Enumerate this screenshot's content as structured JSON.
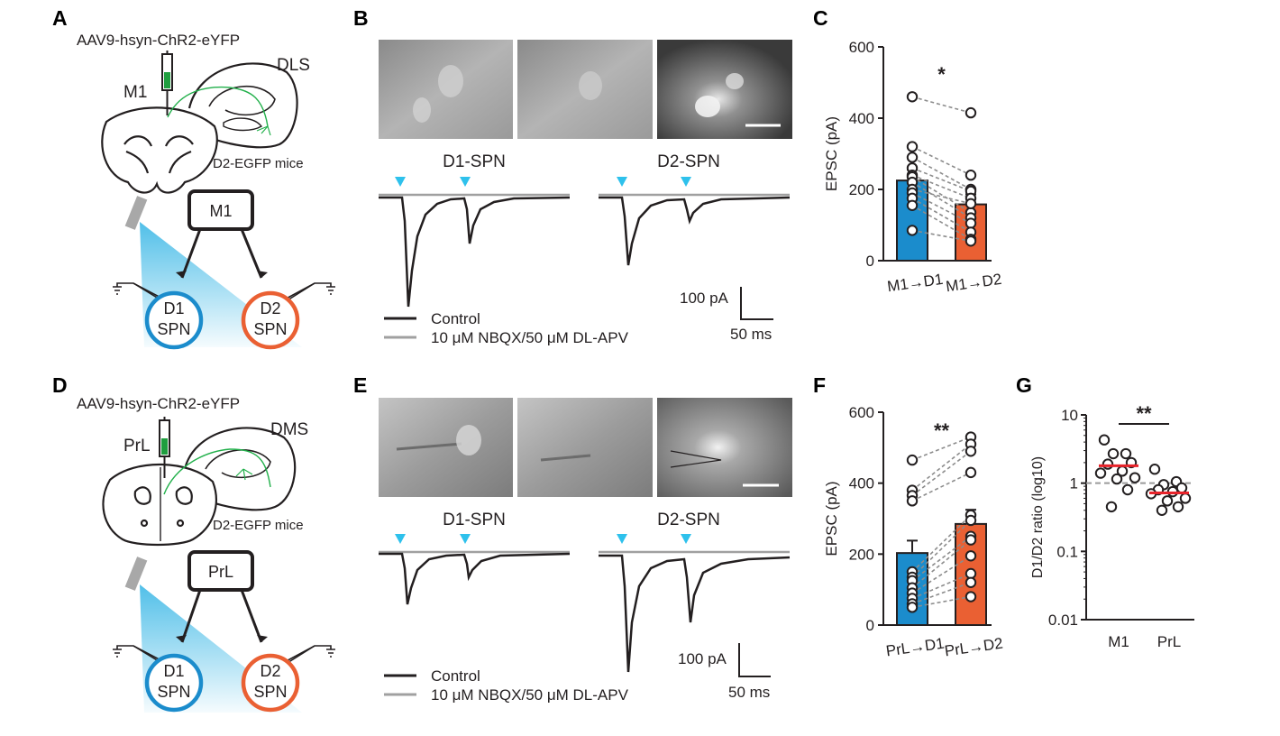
{
  "panels": {
    "A": {
      "label": "A",
      "virus": "AAV9-hsyn-ChR2-eYFP",
      "source_area": "M1",
      "target_area": "DLS",
      "mouse_line": "D2-EGFP mice",
      "box_label": "M1",
      "cell1": [
        "D1",
        "SPN"
      ],
      "cell2": [
        "D2",
        "SPN"
      ]
    },
    "B": {
      "label": "B",
      "trace_title_1": "D1-SPN",
      "trace_title_2": "D2-SPN",
      "scalebar_y": "100 pA",
      "scalebar_x": "50 ms",
      "legend": [
        {
          "name": "Control",
          "color": "#231f20"
        },
        {
          "name": "10 μM NBQX/50 μM DL-APV",
          "color": "#a0a0a0"
        }
      ]
    },
    "D": {
      "label": "D",
      "virus": "AAV9-hsyn-ChR2-eYFP",
      "source_area": "PrL",
      "target_area": "DMS",
      "mouse_line": "D2-EGFP mice",
      "box_label": "PrL",
      "cell1": [
        "D1",
        "SPN"
      ],
      "cell2": [
        "D2",
        "SPN"
      ]
    },
    "E": {
      "label": "E",
      "trace_title_1": "D1-SPN",
      "trace_title_2": "D2-SPN",
      "scalebar_y": "100 pA",
      "scalebar_x": "50 ms",
      "legend": [
        {
          "name": "Control",
          "color": "#231f20"
        },
        {
          "name": "10 μM NBQX/50 μM DL-APV",
          "color": "#a0a0a0"
        }
      ]
    }
  },
  "colors": {
    "d1": "#1b8ccc",
    "d2": "#ea6033",
    "light": "#3db8e6",
    "mean_line": "#e8232a",
    "pair_line": "#8c8c8c",
    "axon": "#22b04b"
  },
  "chart_data": [
    {
      "panel": "C",
      "type": "bar",
      "categories": [
        "M1→D1",
        "M1→D2"
      ],
      "ylabel": "EPSC (pA)",
      "ylim": [
        0,
        600
      ],
      "yticks": [
        0,
        200,
        400,
        600
      ],
      "means": [
        225,
        158
      ],
      "sem": [
        30,
        28
      ],
      "significance": "*",
      "pairs": [
        [
          460,
          415
        ],
        [
          320,
          240
        ],
        [
          290,
          200
        ],
        [
          260,
          195
        ],
        [
          240,
          175
        ],
        [
          235,
          135
        ],
        [
          220,
          120
        ],
        [
          200,
          160
        ],
        [
          190,
          105
        ],
        [
          175,
          80
        ],
        [
          155,
          60
        ],
        [
          85,
          55
        ]
      ]
    },
    {
      "panel": "F",
      "type": "bar",
      "categories": [
        "PrL→D1",
        "PrL→D2"
      ],
      "ylabel": "EPSC (pA)",
      "ylim": [
        0,
        600
      ],
      "yticks": [
        0,
        200,
        400,
        600
      ],
      "means": [
        203,
        285
      ],
      "sem": [
        35,
        40
      ],
      "significance": "**",
      "pairs": [
        [
          465,
          530
        ],
        [
          380,
          510
        ],
        [
          365,
          490
        ],
        [
          350,
          430
        ],
        [
          150,
          310
        ],
        [
          135,
          295
        ],
        [
          125,
          250
        ],
        [
          105,
          240
        ],
        [
          90,
          195
        ],
        [
          75,
          145
        ],
        [
          60,
          120
        ],
        [
          50,
          80
        ]
      ]
    },
    {
      "panel": "G",
      "type": "scatter",
      "categories": [
        "M1",
        "PrL"
      ],
      "ylabel": "D1/D2 ratio (log10)",
      "yscale": "log",
      "ylim": [
        0.01,
        10
      ],
      "yticks": [
        0.01,
        0.1,
        1,
        10
      ],
      "ytick_labels": [
        "0.01",
        "0.1",
        "1",
        "10"
      ],
      "reference_line": 1,
      "significance": "**",
      "points": [
        [
          4.3,
          2.7,
          2.7,
          2.0,
          1.9,
          1.5,
          1.4,
          1.2,
          1.15,
          0.8,
          0.45
        ],
        [
          1.6,
          1.05,
          0.95,
          0.85,
          0.8,
          0.75,
          0.7,
          0.6,
          0.55,
          0.45,
          0.4
        ]
      ],
      "means": [
        1.8,
        0.72
      ]
    }
  ]
}
